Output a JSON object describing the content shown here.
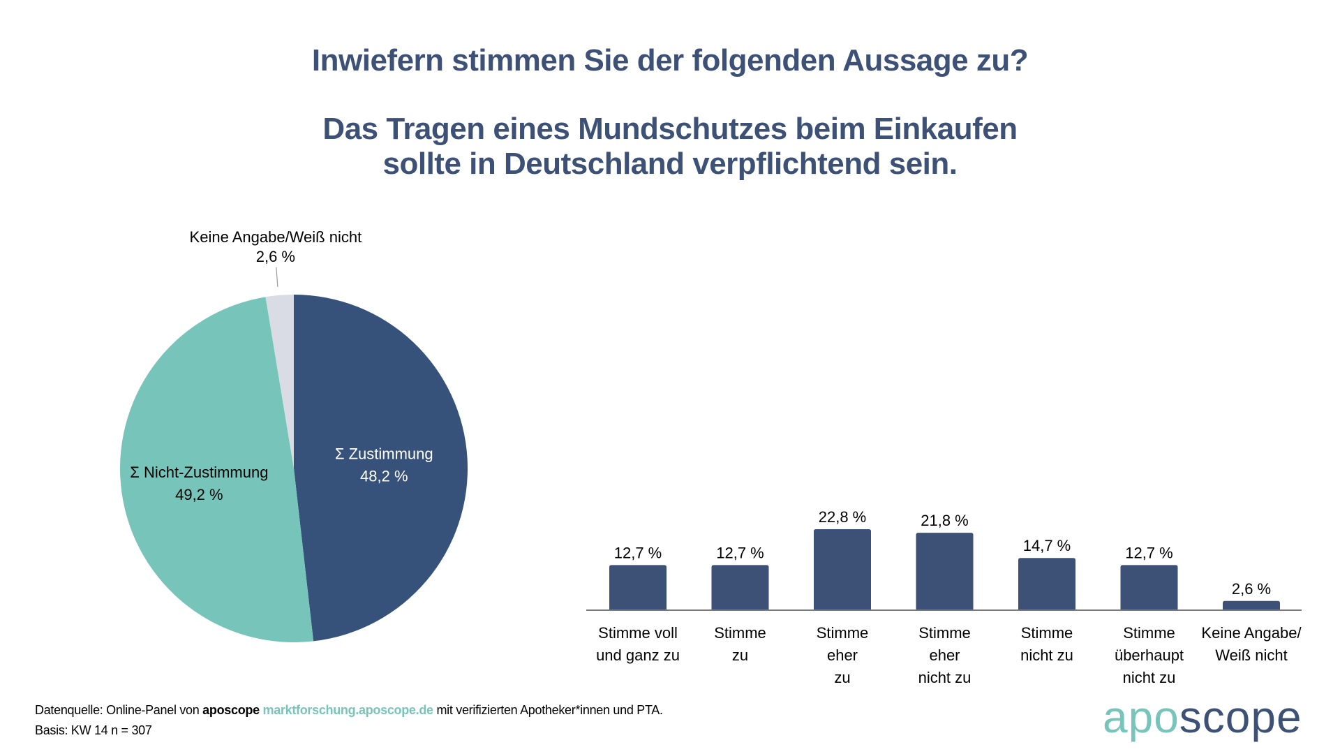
{
  "header": {
    "question": "Inwiefern stimmen Sie der folgenden Aussage zu?",
    "statement_line1": "Das Tragen eines Mundschutzes beim Einkaufen",
    "statement_line2": "sollte in Deutschland verpflichtend sein."
  },
  "colors": {
    "dark_blue": "#3d5177",
    "pie_dark_blue": "#37527a",
    "teal": "#77c4ba",
    "light_gray": "#d9dce4",
    "axis": "#777777"
  },
  "chart_data": [
    {
      "type": "pie",
      "title": "",
      "slices": [
        {
          "label": "Σ Zustimmung",
          "value": 48.2,
          "value_label": "48,2 %",
          "color": "#37527a",
          "label_color": "#ffffff"
        },
        {
          "label": "Σ Nicht-Zustimmung",
          "value": 49.2,
          "value_label": "49,2 %",
          "color": "#77c4ba",
          "label_color": "#000000"
        },
        {
          "label": "Keine Angabe/Weiß nicht",
          "value": 2.6,
          "value_label": "2,6 %",
          "color": "#d9dce4",
          "label_color": "#000000"
        }
      ],
      "start_angle": "12 o'clock, clockwise"
    },
    {
      "type": "bar",
      "title": "",
      "xlabel": "",
      "ylabel": "",
      "ylim": [
        0,
        25
      ],
      "grid": false,
      "categories": [
        [
          "Stimme voll",
          "und ganz zu"
        ],
        [
          "Stimme",
          "zu"
        ],
        [
          "Stimme",
          "eher",
          "zu"
        ],
        [
          "Stimme",
          "eher",
          "nicht zu"
        ],
        [
          "Stimme",
          "nicht zu"
        ],
        [
          "Stimme",
          "überhaupt",
          "nicht zu"
        ],
        [
          "Keine Angabe/",
          "Weiß nicht"
        ]
      ],
      "values": [
        12.7,
        12.7,
        22.8,
        21.8,
        14.7,
        12.7,
        2.6
      ],
      "value_labels": [
        "12,7 %",
        "12,7 %",
        "22,8 %",
        "21,8 %",
        "14,7 %",
        "12,7 %",
        "2,6 %"
      ],
      "color": "#3d5177"
    }
  ],
  "footer": {
    "source_prefix": "Datenquelle: Online-Panel von ",
    "source_brand": "aposcope",
    "source_link": "marktforschung.aposcope.de",
    "source_suffix": " mit verifizierten Apotheker*innen und PTA.",
    "basis": "Basis: KW 14 n = 307"
  },
  "logo": {
    "part1": "apo",
    "part2": "scope"
  }
}
